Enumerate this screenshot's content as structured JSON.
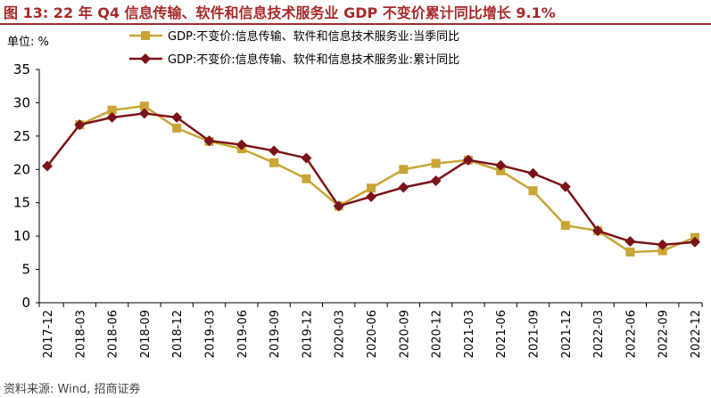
{
  "header": {
    "title": "图 13: 22 年 Q4 信息传输、软件和信息技术服务业 GDP 不变价累计同比增长 9.1%",
    "unit": "单位:  %"
  },
  "footer": {
    "source": "资料来源: Wind, 招商证券"
  },
  "colors": {
    "title": "#a52a2a",
    "series_quarterly": "#c9a535",
    "series_cumulative": "#7a1418"
  },
  "chart_data": {
    "type": "line",
    "title": "22 年 Q4 信息传输、软件和信息技术服务业 GDP 不变价累计同比增长 9.1%",
    "xlabel": "",
    "ylabel": "",
    "ylim": [
      0,
      35
    ],
    "yticks": [
      0,
      5,
      10,
      15,
      20,
      25,
      30,
      35
    ],
    "grid": false,
    "legend_position": "top",
    "categories": [
      "2017-12",
      "2018-03",
      "2018-06",
      "2018-09",
      "2018-12",
      "2019-03",
      "2019-06",
      "2019-09",
      "2019-12",
      "2020-03",
      "2020-06",
      "2020-09",
      "2020-12",
      "2021-03",
      "2021-06",
      "2021-09",
      "2021-12",
      "2022-03",
      "2022-06",
      "2022-09",
      "2022-12"
    ],
    "series": [
      {
        "name": "GDP:不变价:信息传输、软件和信息技术服务业:当季同比",
        "marker": "square",
        "color": "#c9a535",
        "values": [
          null,
          26.7,
          28.9,
          29.5,
          26.2,
          24.2,
          23.1,
          21.0,
          18.6,
          14.5,
          17.2,
          20.0,
          20.9,
          21.4,
          19.8,
          16.8,
          11.6,
          10.8,
          7.6,
          7.8,
          9.8
        ]
      },
      {
        "name": "GDP:不变价:信息传输、软件和信息技术服务业:累计同比",
        "marker": "diamond",
        "color": "#7a1418",
        "values": [
          20.5,
          26.7,
          27.8,
          28.4,
          27.8,
          24.3,
          23.7,
          22.8,
          21.7,
          14.5,
          15.9,
          17.3,
          18.3,
          21.4,
          20.6,
          19.4,
          17.4,
          10.8,
          9.2,
          8.7,
          9.1
        ]
      }
    ]
  }
}
